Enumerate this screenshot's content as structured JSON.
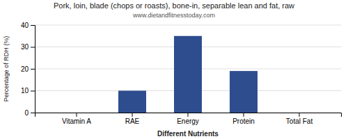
{
  "chart_data": {
    "type": "bar",
    "title": "Pork, loin, blade (chops or roasts), bone-in, separable lean and fat, raw",
    "subtitle": "www.dietandfitnesstoday.com",
    "categories": [
      "Vitamin A",
      "RAE",
      "Energy",
      "Protein",
      "Total Fat"
    ],
    "values": [
      0,
      10,
      35,
      19,
      0
    ],
    "color": "#2e4d8e",
    "xlabel": "Different Nutrients",
    "ylabel": "Percentage of RDH (%)",
    "ylim": [
      0,
      40
    ],
    "yticks": [
      0,
      10,
      20,
      30,
      40
    ],
    "grid": true
  }
}
